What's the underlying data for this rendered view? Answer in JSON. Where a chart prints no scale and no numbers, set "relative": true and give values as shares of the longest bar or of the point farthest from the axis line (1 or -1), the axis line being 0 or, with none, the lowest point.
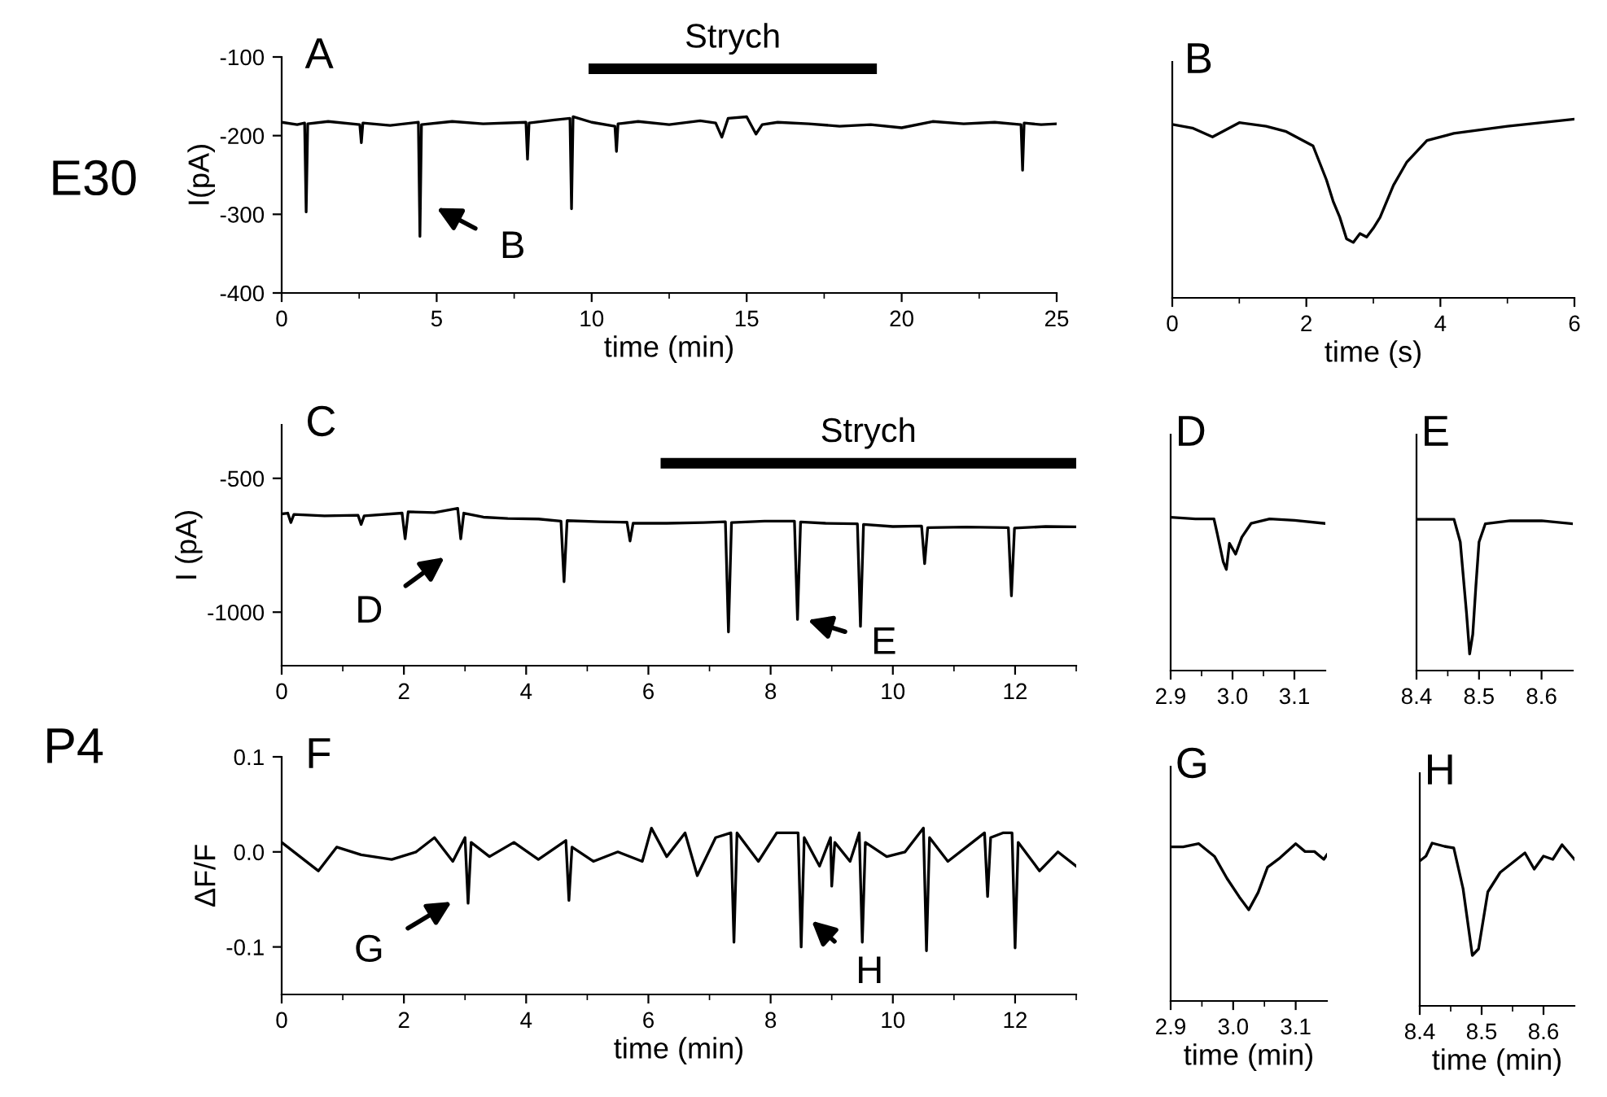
{
  "chart_data": [
    {
      "type": "line",
      "xlabel": "time (min)",
      "ylabel": "I(pA)",
      "annotations": [
        "A",
        "E30",
        "B"
      ],
      "xlim": [
        0,
        25
      ],
      "xticks": [
        0,
        5,
        10,
        15,
        20,
        25,
        {
          "value": 2.5,
          "label": null
        },
        {
          "value": 7.5,
          "label": null
        },
        {
          "value": 12.5,
          "label": null
        },
        {
          "value": 17.5,
          "label": null
        },
        {
          "value": 22.5,
          "label": null
        }
      ],
      "ylim": [
        -400,
        -100
      ],
      "yticks": [
        -100,
        -200,
        -300,
        -400
      ],
      "bands": [
        {
          "axis": "x",
          "from": 9.9,
          "to": 19.2,
          "label": "Strych",
          "color": "#000000"
        }
      ],
      "series": [
        {
          "color": "#000000",
          "x": [
            0,
            0.5,
            0.74,
            0.79,
            0.84,
            1.5,
            2.52,
            2.57,
            2.62,
            3.5,
            4.41,
            4.46,
            4.51,
            5.5,
            6.5,
            7.88,
            7.93,
            7.98,
            8.8,
            9.3,
            9.35,
            9.4,
            10,
            10.75,
            10.8,
            10.85,
            11.5,
            12.5,
            13.5,
            14.0,
            14.2,
            14.4,
            15.0,
            15.3,
            15.5,
            16,
            17,
            18,
            19,
            20,
            21,
            22,
            23,
            23.85,
            23.9,
            23.95,
            24.5,
            25
          ],
          "values": [
            -183,
            -186,
            -184,
            -297,
            -185,
            -182,
            -186,
            -209,
            -184,
            -187,
            -183,
            -328,
            -186,
            -182,
            -185,
            -183,
            -230,
            -184,
            -180,
            -178,
            -293,
            -176,
            -183,
            -188,
            -220,
            -185,
            -182,
            -186,
            -181,
            -184,
            -202,
            -178,
            -176,
            -198,
            -186,
            -183,
            -185,
            -188,
            -186,
            -190,
            -182,
            -185,
            -183,
            -186,
            -244,
            -184,
            -186,
            -185
          ]
        }
      ]
    },
    {
      "type": "line",
      "xlabel": "time (s)",
      "annotations": [
        "B"
      ],
      "relative": true,
      "tick_labels": "x",
      "xlim": [
        0,
        6
      ],
      "xticks": [
        0,
        2,
        4,
        6,
        {
          "value": 1,
          "label": null
        },
        {
          "value": 3,
          "label": null
        },
        {
          "value": 5,
          "label": null
        }
      ],
      "series": [
        {
          "color": "#000000",
          "x": [
            0,
            0.3,
            0.6,
            1.0,
            1.4,
            1.7,
            2.1,
            2.3,
            2.4,
            2.5,
            2.6,
            2.7,
            2.8,
            2.9,
            3.0,
            3.1,
            3.3,
            3.5,
            3.8,
            4.2,
            5.0,
            6.0
          ],
          "values": [
            0.97,
            0.95,
            0.9,
            0.98,
            0.96,
            0.93,
            0.85,
            0.66,
            0.54,
            0.45,
            0.33,
            0.31,
            0.36,
            0.34,
            0.39,
            0.45,
            0.63,
            0.76,
            0.88,
            0.92,
            0.96,
            1.0
          ]
        }
      ]
    },
    {
      "type": "line",
      "ylabel": "I (pA)",
      "annotations": [
        "C",
        "P4",
        "D",
        "E"
      ],
      "xlim": [
        0,
        13
      ],
      "xticks": [
        0,
        2,
        4,
        6,
        8,
        10,
        12,
        {
          "value": 1,
          "label": null
        },
        {
          "value": 3,
          "label": null
        },
        {
          "value": 5,
          "label": null
        },
        {
          "value": 7,
          "label": null
        },
        {
          "value": 9,
          "label": null
        },
        {
          "value": 11,
          "label": null
        },
        {
          "value": 13,
          "label": null
        }
      ],
      "ylim": [
        -1200,
        -300
      ],
      "yticks": [
        -500,
        -1000
      ],
      "bands": [
        {
          "axis": "x",
          "from": 6.2,
          "to": 13,
          "label": "Strych",
          "color": "#000000"
        }
      ],
      "series": [
        {
          "color": "#000000",
          "x": [
            0,
            0.1,
            0.15,
            0.2,
            0.7,
            1.25,
            1.3,
            1.35,
            1.97,
            2.02,
            2.07,
            2.5,
            2.88,
            2.93,
            2.98,
            3.3,
            3.7,
            4.2,
            4.57,
            4.62,
            4.67,
            5.2,
            5.65,
            5.7,
            5.75,
            6.3,
            6.9,
            7.26,
            7.31,
            7.36,
            7.9,
            8.39,
            8.44,
            8.49,
            8.9,
            9.42,
            9.47,
            9.52,
            10,
            10.47,
            10.52,
            10.57,
            11.2,
            11.89,
            11.94,
            11.99,
            12.5,
            13
          ],
          "values": [
            -633,
            -630,
            -665,
            -635,
            -640,
            -638,
            -672,
            -640,
            -630,
            -726,
            -625,
            -628,
            -612,
            -726,
            -630,
            -645,
            -650,
            -652,
            -660,
            -886,
            -658,
            -662,
            -664,
            -734,
            -668,
            -668,
            -665,
            -662,
            -1074,
            -665,
            -660,
            -660,
            -1027,
            -663,
            -668,
            -670,
            -1053,
            -672,
            -680,
            -678,
            -819,
            -684,
            -682,
            -684,
            -939,
            -686,
            -680,
            -681
          ]
        }
      ]
    },
    {
      "type": "line",
      "annotations": [
        "D"
      ],
      "relative": true,
      "tick_labels": "x",
      "xlim": [
        2.9,
        3.15
      ],
      "xticks": [
        {
          "value": 2.9,
          "label": "2.9"
        },
        {
          "value": 3.0,
          "label": "3.0"
        },
        {
          "value": 3.1,
          "label": "3.1"
        },
        {
          "value": 2.95,
          "label": null
        },
        {
          "value": 3.05,
          "label": null
        }
      ],
      "series": [
        {
          "color": "#000000",
          "x": [
            2.9,
            2.94,
            2.97,
            2.975,
            2.985,
            2.99,
            2.995,
            3.005,
            3.015,
            3.03,
            3.06,
            3.1,
            3.15
          ],
          "values": [
            1.0,
            0.99,
            0.99,
            0.9,
            0.71,
            0.66,
            0.83,
            0.76,
            0.87,
            0.96,
            0.99,
            0.98,
            0.96
          ]
        }
      ]
    },
    {
      "type": "line",
      "annotations": [
        "E"
      ],
      "relative": true,
      "tick_labels": "x",
      "xlim": [
        8.4,
        8.65
      ],
      "xticks": [
        {
          "value": 8.4,
          "label": "8.4"
        },
        {
          "value": 8.5,
          "label": "8.5"
        },
        {
          "value": 8.6,
          "label": "8.6"
        },
        {
          "value": 8.45,
          "label": null
        },
        {
          "value": 8.55,
          "label": null
        }
      ],
      "series": [
        {
          "color": "#000000",
          "x": [
            8.4,
            8.46,
            8.47,
            8.48,
            8.485,
            8.49,
            8.495,
            8.5,
            8.51,
            8.55,
            8.6,
            8.65
          ],
          "values": [
            1.0,
            1.0,
            0.85,
            0.38,
            0.11,
            0.24,
            0.56,
            0.85,
            0.97,
            0.99,
            0.99,
            0.97
          ]
        }
      ]
    },
    {
      "type": "line",
      "xlabel": "time (min)",
      "ylabel": "ΔF/F",
      "annotations": [
        "F",
        "G",
        "H"
      ],
      "xlim": [
        0,
        13
      ],
      "xticks": [
        0,
        2,
        4,
        6,
        8,
        10,
        12,
        {
          "value": 1,
          "label": null
        },
        {
          "value": 3,
          "label": null
        },
        {
          "value": 5,
          "label": null
        },
        {
          "value": 7,
          "label": null
        },
        {
          "value": 9,
          "label": null
        },
        {
          "value": 11,
          "label": null
        },
        {
          "value": 13,
          "label": null
        }
      ],
      "ylim": [
        -0.15,
        0.1
      ],
      "yticks": [
        0.1,
        {
          "value": 0,
          "label": "0.0"
        },
        -0.1
      ],
      "series": [
        {
          "color": "#000000",
          "x": [
            0,
            0.3,
            0.6,
            0.9,
            1.3,
            1.8,
            2.2,
            2.5,
            2.8,
            3.0,
            3.05,
            3.1,
            3.4,
            3.8,
            4.2,
            4.65,
            4.7,
            4.75,
            5.1,
            5.5,
            5.9,
            6.05,
            6.3,
            6.6,
            6.8,
            7.1,
            7.35,
            7.4,
            7.45,
            7.8,
            8.1,
            8.45,
            8.5,
            8.55,
            8.8,
            8.98,
            9.0,
            9.05,
            9.3,
            9.45,
            9.5,
            9.55,
            9.9,
            10.2,
            10.5,
            10.55,
            10.6,
            10.9,
            11.3,
            11.5,
            11.55,
            11.6,
            11.8,
            11.95,
            12.0,
            12.05,
            12.4,
            12.7,
            13
          ],
          "values": [
            0.01,
            -0.005,
            -0.02,
            0.005,
            -0.003,
            -0.008,
            0.0,
            0.015,
            -0.01,
            0.015,
            -0.054,
            0.01,
            -0.005,
            0.01,
            -0.008,
            0.012,
            -0.051,
            0.005,
            -0.01,
            0.0,
            -0.01,
            0.025,
            -0.005,
            0.02,
            -0.025,
            0.015,
            0.02,
            -0.095,
            0.02,
            -0.01,
            0.02,
            0.02,
            -0.1,
            0.015,
            -0.015,
            0.015,
            -0.036,
            0.01,
            -0.01,
            0.02,
            -0.095,
            0.01,
            -0.005,
            0.0,
            0.025,
            -0.104,
            0.015,
            -0.01,
            0.01,
            0.02,
            -0.047,
            0.015,
            0.02,
            0.02,
            -0.101,
            0.01,
            -0.02,
            0.0,
            -0.015
          ]
        }
      ]
    },
    {
      "type": "line",
      "xlabel": "time (min)",
      "annotations": [
        "G"
      ],
      "relative": true,
      "tick_labels": "x",
      "xlim": [
        2.9,
        3.15
      ],
      "xticks": [
        {
          "value": 2.9,
          "label": "2.9"
        },
        {
          "value": 3.0,
          "label": "3.0"
        },
        {
          "value": 3.1,
          "label": "3.1"
        },
        {
          "value": 2.95,
          "label": null
        },
        {
          "value": 3.05,
          "label": null
        }
      ],
      "series": [
        {
          "color": "#000000",
          "x": [
            2.9,
            2.92,
            2.945,
            2.97,
            2.99,
            3.01,
            3.025,
            3.04,
            3.055,
            3.075,
            3.1,
            3.115,
            3.13,
            3.145,
            3.15
          ],
          "values": [
            0.98,
            0.98,
            1.0,
            0.92,
            0.78,
            0.66,
            0.58,
            0.69,
            0.85,
            0.91,
            1.0,
            0.95,
            0.95,
            0.9,
            0.93
          ]
        }
      ]
    },
    {
      "type": "line",
      "xlabel": "time (min)",
      "annotations": [
        "H"
      ],
      "relative": true,
      "tick_labels": "x",
      "xlim": [
        8.4,
        8.65
      ],
      "xticks": [
        {
          "value": 8.4,
          "label": "8.4"
        },
        {
          "value": 8.5,
          "label": "8.5"
        },
        {
          "value": 8.6,
          "label": "8.6"
        },
        {
          "value": 8.45,
          "label": null
        },
        {
          "value": 8.55,
          "label": null
        }
      ],
      "series": [
        {
          "color": "#000000",
          "x": [
            8.4,
            8.41,
            8.42,
            8.44,
            8.455,
            8.47,
            8.485,
            8.495,
            8.51,
            8.53,
            8.55,
            8.57,
            8.585,
            8.6,
            8.615,
            8.63,
            8.65
          ],
          "values": [
            0.89,
            0.92,
            1.0,
            0.98,
            0.97,
            0.72,
            0.31,
            0.35,
            0.7,
            0.82,
            0.88,
            0.94,
            0.84,
            0.92,
            0.9,
            0.99,
            0.9
          ]
        }
      ]
    }
  ]
}
